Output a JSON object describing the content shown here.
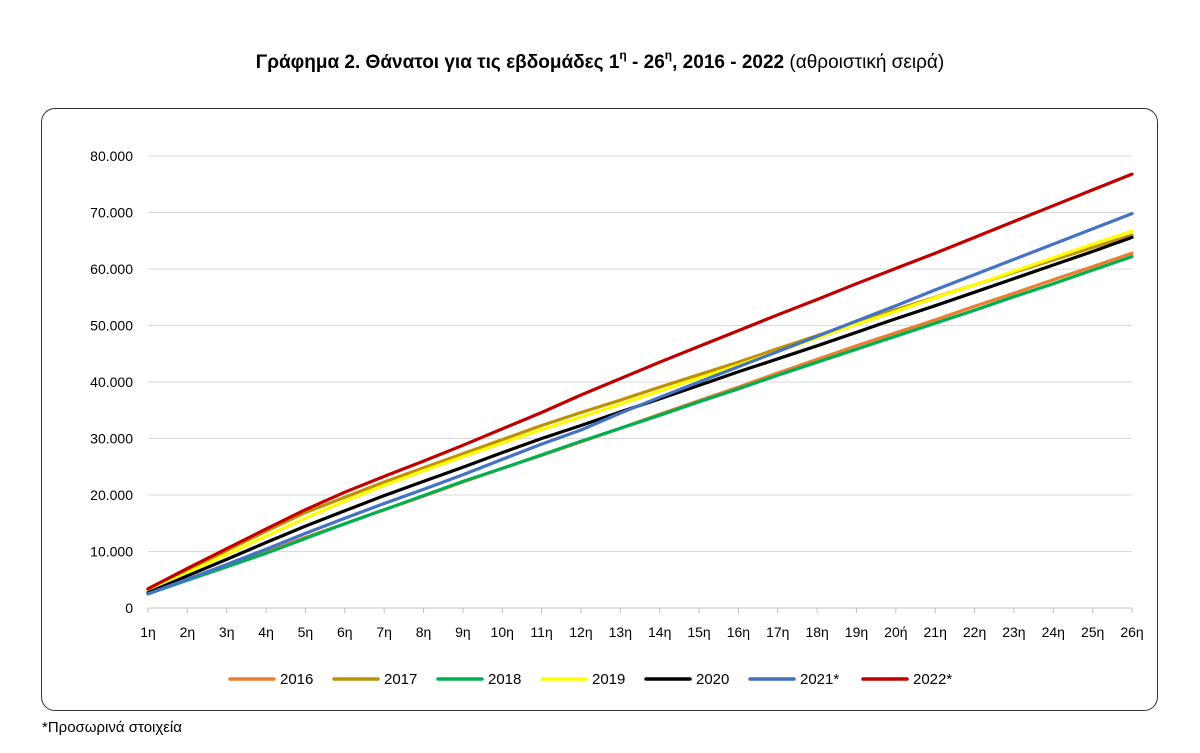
{
  "title": {
    "bold_prefix": "Γράφημα 2. Θάνατοι για τις εβδομάδες 1",
    "sup1": "η",
    "bold_mid": " - 26",
    "sup2": "η",
    "bold_suffix": ", 2016 - 2022",
    "normal_suffix": " (αθροιστική σειρά)"
  },
  "footnote": "*Προσωρινά στοιχεία",
  "chart_data": {
    "type": "line",
    "x": [
      "1η",
      "2η",
      "3η",
      "4η",
      "5η",
      "6η",
      "7η",
      "8η",
      "9η",
      "10η",
      "11η",
      "12η",
      "13η",
      "14η",
      "15η",
      "16η",
      "17η",
      "18η",
      "19η",
      "20ή",
      "21η",
      "22η",
      "23η",
      "24η",
      "25η",
      "26η"
    ],
    "ylim": [
      0,
      80000
    ],
    "yticks": [
      0,
      10000,
      20000,
      30000,
      40000,
      50000,
      60000,
      70000,
      80000
    ],
    "ytick_labels": [
      "0",
      "10.000",
      "20.000",
      "30.000",
      "40.000",
      "50.000",
      "60.000",
      "70.000",
      "80.000"
    ],
    "grid": true,
    "legend_position": "bottom",
    "series": [
      {
        "name": "2016",
        "color": "#ED7D31",
        "values": [
          2600,
          5000,
          7400,
          9900,
          12500,
          14900,
          17400,
          19800,
          22300,
          24700,
          27000,
          29400,
          31800,
          34300,
          36700,
          39100,
          41600,
          44000,
          46400,
          48700,
          51000,
          53400,
          55700,
          58100,
          60400,
          62800
        ]
      },
      {
        "name": "2017",
        "color": "#BF9000",
        "values": [
          3200,
          6600,
          10200,
          13600,
          16900,
          19600,
          22300,
          24800,
          27300,
          29800,
          32300,
          34600,
          36800,
          39100,
          41300,
          43500,
          45900,
          48200,
          50500,
          52800,
          55000,
          57200,
          59400,
          61600,
          63800,
          66000
        ]
      },
      {
        "name": "2018",
        "color": "#00B050",
        "values": [
          2500,
          4900,
          7300,
          9700,
          12300,
          14900,
          17400,
          19900,
          22400,
          24700,
          27100,
          29500,
          31800,
          34100,
          36500,
          38800,
          41200,
          43500,
          45800,
          48100,
          50400,
          52700,
          55100,
          57400,
          59800,
          62200
        ]
      },
      {
        "name": "2019",
        "color": "#FFFF00",
        "values": [
          2900,
          6200,
          9500,
          12700,
          15900,
          18900,
          21700,
          24300,
          26800,
          29200,
          31600,
          33800,
          36100,
          38400,
          40700,
          43000,
          45400,
          47800,
          50200,
          52500,
          54900,
          57200,
          59600,
          62000,
          64400,
          66700
        ]
      },
      {
        "name": "2020",
        "color": "#000000",
        "values": [
          2700,
          5700,
          8600,
          11600,
          14500,
          17200,
          19900,
          22400,
          24900,
          27500,
          30000,
          32300,
          34700,
          37000,
          39400,
          41800,
          44100,
          46400,
          48800,
          51200,
          53500,
          55900,
          58300,
          60700,
          63100,
          65600
        ]
      },
      {
        "name": "2021*",
        "color": "#4472C4",
        "values": [
          2500,
          5100,
          7700,
          10400,
          13200,
          15900,
          18500,
          21000,
          23600,
          26300,
          29000,
          31500,
          34500,
          37300,
          40000,
          42700,
          45400,
          48100,
          50800,
          53500,
          56300,
          59000,
          61700,
          64400,
          67100,
          69800
        ]
      },
      {
        "name": "2022*",
        "color": "#C00000",
        "values": [
          3400,
          7000,
          10500,
          14000,
          17400,
          20500,
          23300,
          26000,
          28800,
          31700,
          34600,
          37700,
          40600,
          43500,
          46300,
          49100,
          51900,
          54600,
          57400,
          60100,
          62800,
          65600,
          68400,
          71200,
          74000,
          76800
        ]
      }
    ]
  }
}
